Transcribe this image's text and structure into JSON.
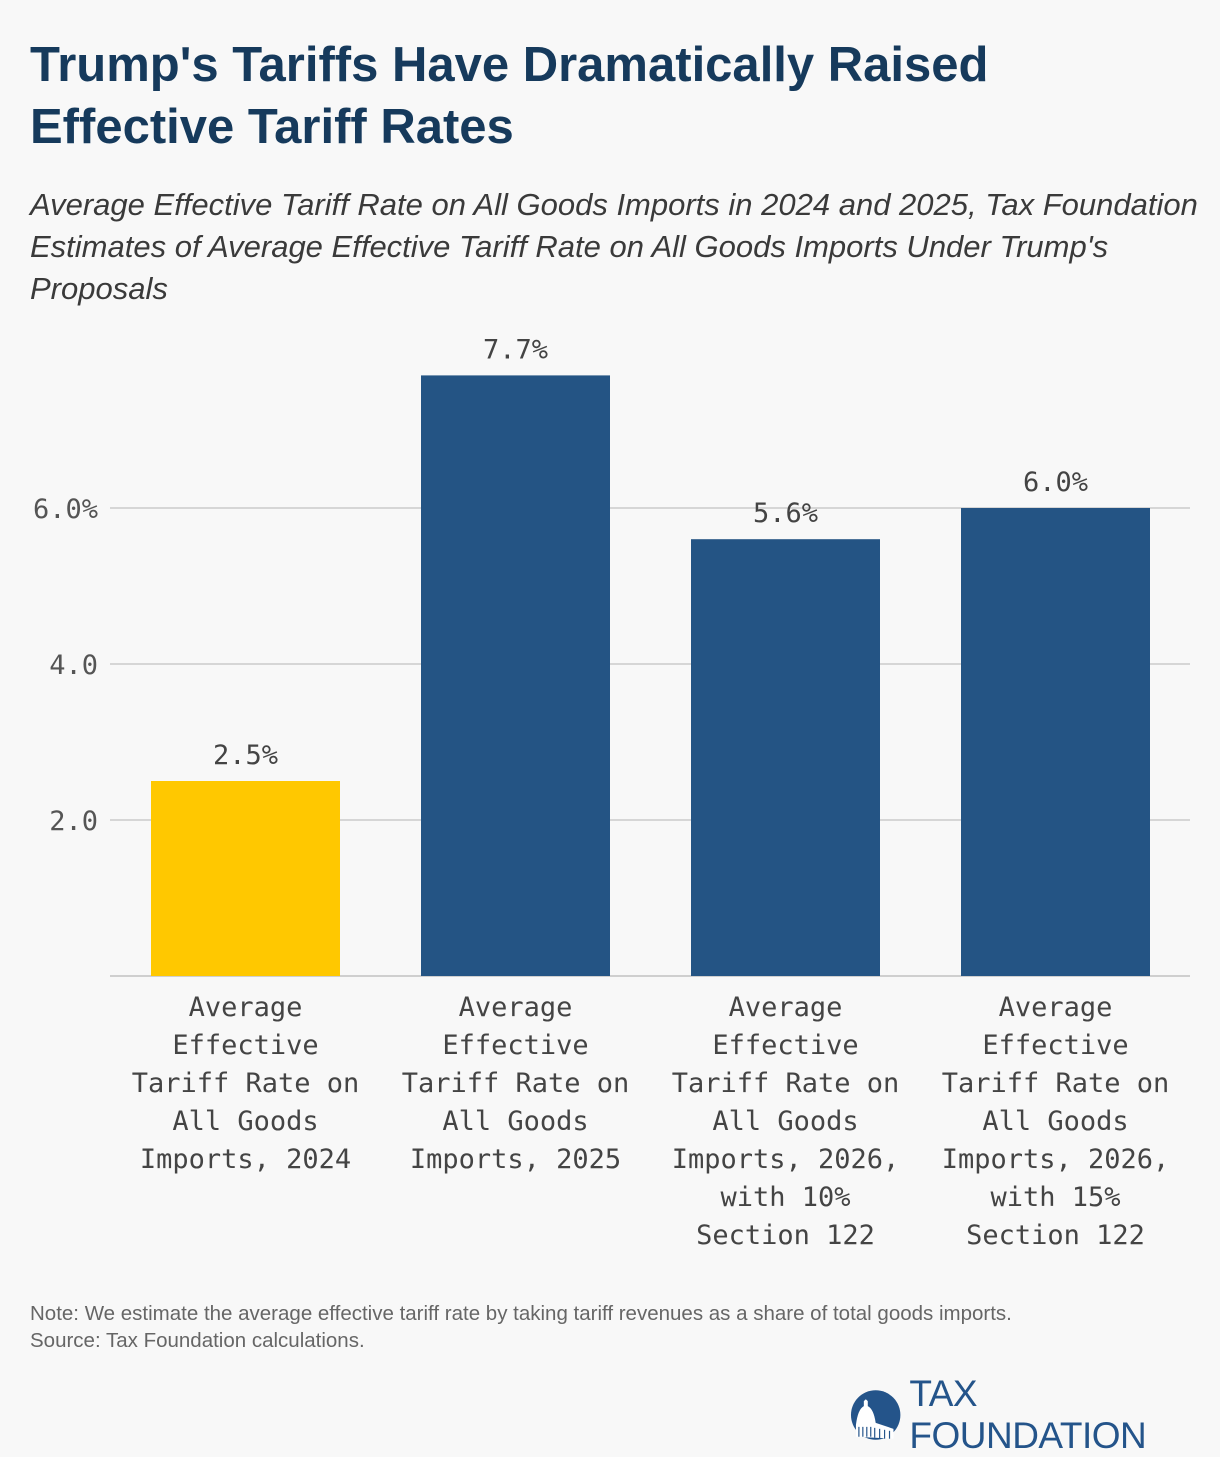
{
  "header": {
    "title": "Trump's Tariffs Have Dramatically Raised Effective Tariff Rates",
    "subtitle": "Average Effective Tariff Rate on All Goods Imports in 2024 and 2025, Tax Foundation Estimates of Average Effective Tariff Rate on All Goods Imports Under Trump's Proposals"
  },
  "chart_data": {
    "type": "bar",
    "categories": [
      "Average Effective Tariff Rate on All Goods Imports, 2024",
      "Average Effective Tariff Rate on All Goods Imports, 2025",
      "Average Effective Tariff Rate on All Goods Imports, 2026, with 10% Section 122",
      "Average Effective Tariff Rate on All Goods Imports, 2026, with 15% Section 122"
    ],
    "values": [
      2.5,
      7.7,
      5.6,
      6.0
    ],
    "data_labels": [
      "2.5%",
      "7.7%",
      "5.6%",
      "6.0%"
    ],
    "colors": [
      "#ffc800",
      "#245484",
      "#245484",
      "#245484"
    ],
    "yticks": [
      2.0,
      4.0,
      6.0
    ],
    "ytick_labels": [
      "2.0",
      "4.0",
      "6.0%"
    ],
    "ylim": [
      0,
      8.5
    ],
    "grid": true,
    "xlabel": "",
    "ylabel": ""
  },
  "footer": {
    "note": "Note: We estimate the average effective tariff rate by taking tariff revenues as a share of total goods imports.",
    "source": "Source: Tax Foundation calculations.",
    "logo_text": "TAX FOUNDATION",
    "logo_color": "#24548a"
  }
}
